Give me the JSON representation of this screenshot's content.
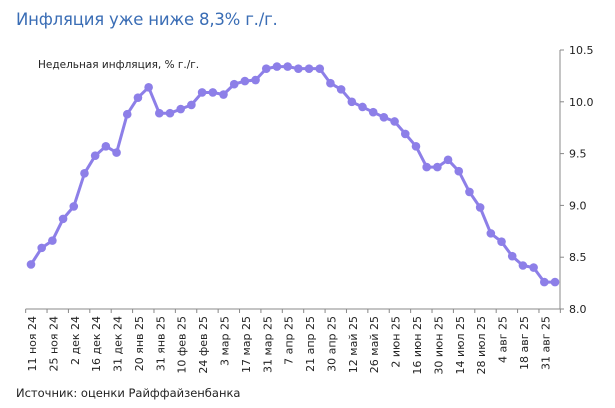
{
  "title": "Инфляция уже ниже 8,3% г./г.",
  "source": "Источник: оценки Райффайзенбанка",
  "chart_data": {
    "type": "line",
    "title": "Инфляция уже ниже 8,3% г./г.",
    "series_label": "Недельная инфляция, % г./г.",
    "x_labels": [
      "11 ноя 24",
      "25 ноя 24",
      "2 дек 24",
      "16 дек 24",
      "31 дек 24",
      "20 янв 25",
      "31 янв 25",
      "10 фев 25",
      "24 фев 25",
      "3 мар 25",
      "17 мар 25",
      "31 мар 25",
      "7 апр 25",
      "21 апр 25",
      "30 апр 25",
      "12 май 25",
      "26 май 25",
      "2 июн 25",
      "16 июн 25",
      "30 июн 25",
      "14 июл 25",
      "28 июл 25",
      "4 авг 25",
      "18 авг 25",
      "31 авг 25"
    ],
    "values": [
      8.43,
      8.59,
      8.66,
      8.87,
      8.99,
      9.31,
      9.48,
      9.57,
      9.51,
      9.88,
      10.04,
      10.14,
      9.89,
      9.89,
      9.93,
      9.97,
      10.09,
      10.09,
      10.07,
      10.17,
      10.2,
      10.21,
      10.32,
      10.34,
      10.34,
      10.32,
      10.32,
      10.32,
      10.18,
      10.12,
      10.0,
      9.95,
      9.9,
      9.85,
      9.81,
      9.69,
      9.57,
      9.37,
      9.37,
      9.44,
      9.33,
      9.13,
      8.98,
      8.73,
      8.65,
      8.51,
      8.42,
      8.4,
      8.26,
      8.26
    ],
    "ylim": [
      8.0,
      10.5
    ],
    "y_ticks": [
      "8.0",
      "8.5",
      "9.0",
      "9.5",
      "10.0",
      "10.5"
    ],
    "y_axis_side": "right",
    "grid": false,
    "line_color": "#8d7fe8"
  }
}
